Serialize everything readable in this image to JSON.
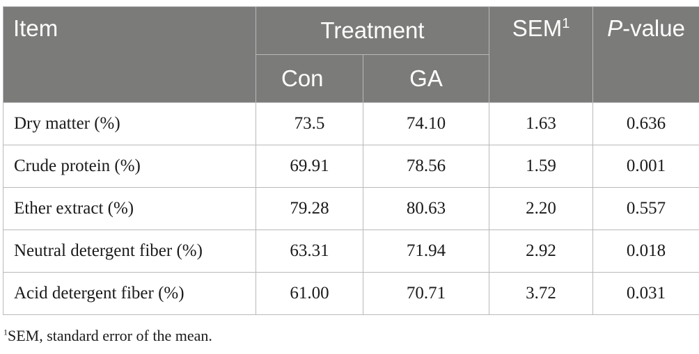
{
  "table": {
    "headers": {
      "item": "Item",
      "treatment": "Treatment",
      "con": "Con",
      "ga": "GA",
      "sem": "SEM",
      "sem_sup": "1",
      "p_italic": "P",
      "p_rest": "-value"
    },
    "rows": [
      {
        "item": "Dry matter (%)",
        "con": "73.5",
        "ga": "74.10",
        "sem": "1.63",
        "p": "0.636"
      },
      {
        "item": "Crude protein (%)",
        "con": "69.91",
        "ga": "78.56",
        "sem": "1.59",
        "p": "0.001"
      },
      {
        "item": "Ether extract (%)",
        "con": "79.28",
        "ga": "80.63",
        "sem": "2.20",
        "p": "0.557"
      },
      {
        "item": "Neutral detergent fiber (%)",
        "con": "63.31",
        "ga": "71.94",
        "sem": "2.92",
        "p": "0.018"
      },
      {
        "item": "Acid detergent fiber (%)",
        "con": "61.00",
        "ga": "70.71",
        "sem": "3.72",
        "p": "0.031"
      }
    ]
  },
  "footnote": {
    "sup": "1",
    "text": "SEM, standard error of the mean."
  },
  "colors": {
    "header_bg": "#7b7b7a",
    "header_text": "#ffffff",
    "border": "#b9b9b9"
  }
}
